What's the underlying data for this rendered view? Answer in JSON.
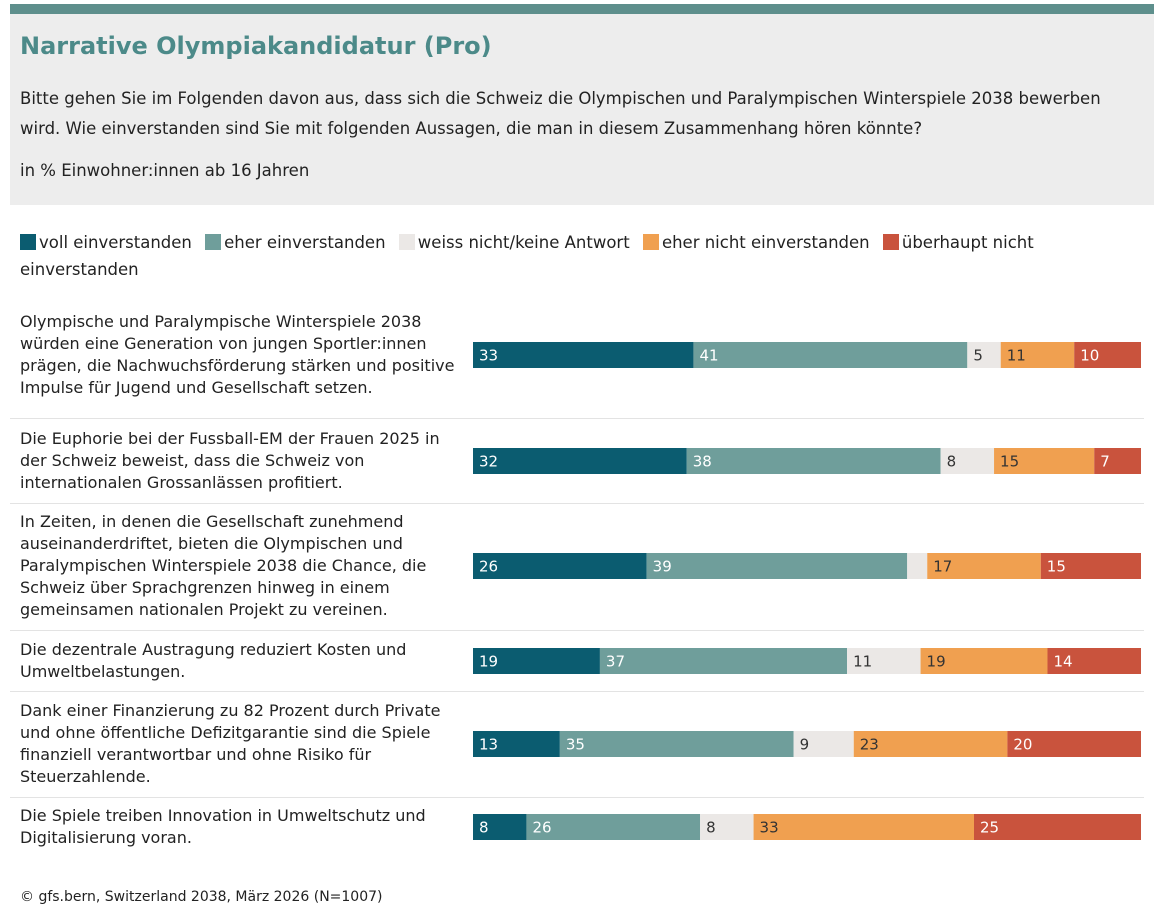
{
  "chart_data": {
    "type": "stacked_bar_horizontal",
    "title": "Narrative Olympiakandidatur (Pro)",
    "subtitle": "Bitte gehen Sie im Folgenden davon aus, dass sich die Schweiz die Olympischen und Paralympischen Winterspiele 2038 bewerben wird. Wie einverstanden sind Sie mit folgenden Aussagen, die man in diesem Zusammenhang hören könnte?",
    "unit_note": "in % Einwohner:innen ab 16 Jahren",
    "source": "© gfs.bern, Switzerland 2038, März 2026 (N=1007)",
    "categories": [
      "Olympische und Paralympische Winterspiele 2038 würden eine Generation von jungen Sportler:innen prägen, die Nachwuchsförderung stärken und positive Impulse für Jugend und Gesellschaft setzen.",
      "Die Euphorie bei der Fussball-EM der Frauen 2025 in der Schweiz beweist, dass die Schweiz von internationalen Grossanlässen profitiert.",
      "In Zeiten, in denen die Gesellschaft zunehmend auseinanderdriftet, bieten die Olympischen und Paralympischen Winterspiele 2038 die Chance, die Schweiz über Sprachgrenzen hinweg in einem gemeinsamen nationalen Projekt zu vereinen.",
      "Die dezentrale Austragung reduziert Kosten und Umweltbelastungen.",
      "Dank einer Finanzierung zu 82 Prozent durch Private und ohne öffentliche Defizitgarantie sind die Spiele finanziell verantwortbar und ohne Risiko für Steuerzahlende.",
      "Die Spiele treiben Innovation in Umweltschutz und Digitalisierung voran."
    ],
    "series": [
      {
        "name": "voll einverstanden",
        "color": "#0b5c70",
        "label_color": "#ffffff",
        "values": [
          33,
          32,
          26,
          19,
          13,
          8
        ]
      },
      {
        "name": "eher einverstanden",
        "color": "#6f9e9b",
        "label_color": "#ffffff",
        "values": [
          41,
          38,
          39,
          37,
          35,
          26
        ]
      },
      {
        "name": "weiss nicht/keine Antwort",
        "color": "#ebe8e6",
        "label_color": "#333333",
        "values": [
          5,
          8,
          3,
          11,
          9,
          8
        ]
      },
      {
        "name": "eher nicht einverstanden",
        "color": "#f0a050",
        "label_color": "#333333",
        "values": [
          11,
          15,
          17,
          19,
          23,
          33
        ]
      },
      {
        "name": "überhaupt nicht einverstanden",
        "color": "#c9533d",
        "label_color": "#ffffff",
        "values": [
          10,
          7,
          15,
          14,
          20,
          25
        ]
      }
    ],
    "xlim": [
      0,
      100
    ]
  }
}
